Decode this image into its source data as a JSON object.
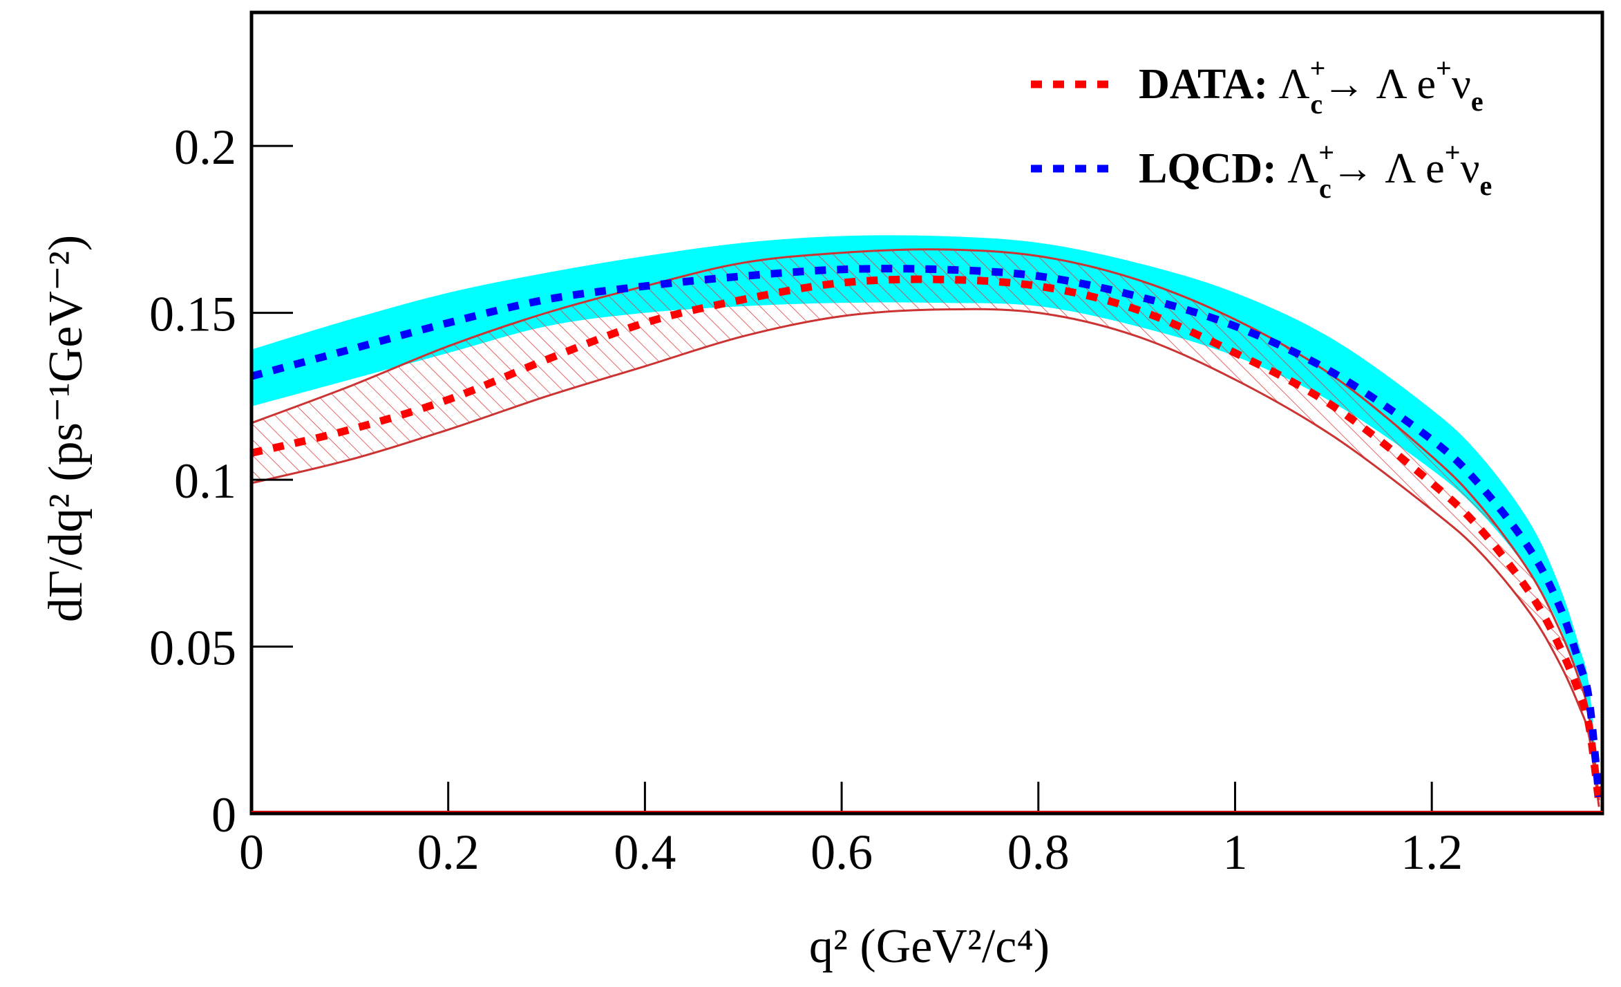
{
  "chart_data": {
    "type": "line",
    "title": "",
    "xlabel": "q² (GeV²/c⁴)",
    "ylabel": "dΓ/dq² (ps⁻¹GeV⁻²)",
    "xlim": [
      0,
      1.3734
    ],
    "ylim": [
      0,
      0.24
    ],
    "xticks": [
      "0",
      "0.2",
      "0.4",
      "0.6",
      "0.8",
      "1",
      "1.2"
    ],
    "yticks": [
      "0",
      "0.05",
      "0.1",
      "0.15",
      "0.2"
    ],
    "grid": false,
    "legend_placement": "top-right",
    "x": [
      0,
      0.1,
      0.2,
      0.3,
      0.4,
      0.5,
      0.6,
      0.7,
      0.8,
      0.9,
      1.0,
      1.1,
      1.2,
      1.25,
      1.3,
      1.33,
      1.35,
      1.36,
      1.37
    ],
    "series": [
      {
        "name": "DATA: Λc+→ Λ e+νe",
        "color": "#ff0000",
        "band_color": "#cc3333",
        "band_style": "hatched",
        "values": [
          0.108,
          0.115,
          0.124,
          0.136,
          0.147,
          0.154,
          0.159,
          0.16,
          0.158,
          0.151,
          0.138,
          0.122,
          0.099,
          0.085,
          0.066,
          0.05,
          0.036,
          0.026,
          0.003
        ],
        "upper": [
          0.117,
          0.128,
          0.14,
          0.15,
          0.158,
          0.165,
          0.168,
          0.169,
          0.167,
          0.16,
          0.148,
          0.131,
          0.107,
          0.092,
          0.072,
          0.055,
          0.04,
          0.029,
          0.004
        ],
        "lower": [
          0.099,
          0.106,
          0.115,
          0.125,
          0.134,
          0.143,
          0.149,
          0.151,
          0.15,
          0.143,
          0.13,
          0.113,
          0.091,
          0.078,
          0.06,
          0.045,
          0.032,
          0.023,
          0.002
        ]
      },
      {
        "name": "LQCD: Λc+→ Λ e+νe",
        "color": "#0000ff",
        "band_color": "#00ffff",
        "band_style": "filled",
        "values": [
          0.131,
          0.139,
          0.147,
          0.154,
          0.158,
          0.161,
          0.163,
          0.163,
          0.161,
          0.155,
          0.146,
          0.132,
          0.112,
          0.098,
          0.079,
          0.062,
          0.045,
          0.034,
          0.005
        ],
        "upper": [
          0.139,
          0.148,
          0.156,
          0.162,
          0.167,
          0.171,
          0.173,
          0.173,
          0.171,
          0.165,
          0.156,
          0.142,
          0.121,
          0.107,
          0.087,
          0.068,
          0.05,
          0.038,
          0.006
        ],
        "lower": [
          0.122,
          0.13,
          0.138,
          0.146,
          0.15,
          0.152,
          0.153,
          0.153,
          0.152,
          0.146,
          0.137,
          0.123,
          0.103,
          0.09,
          0.072,
          0.056,
          0.04,
          0.03,
          0.004
        ]
      }
    ],
    "legend": [
      {
        "prefix": "DATA:",
        "label": "Λc+→ Λ e+νe"
      },
      {
        "prefix": "LQCD:",
        "label": "Λc+→ Λ e+νe"
      }
    ]
  }
}
